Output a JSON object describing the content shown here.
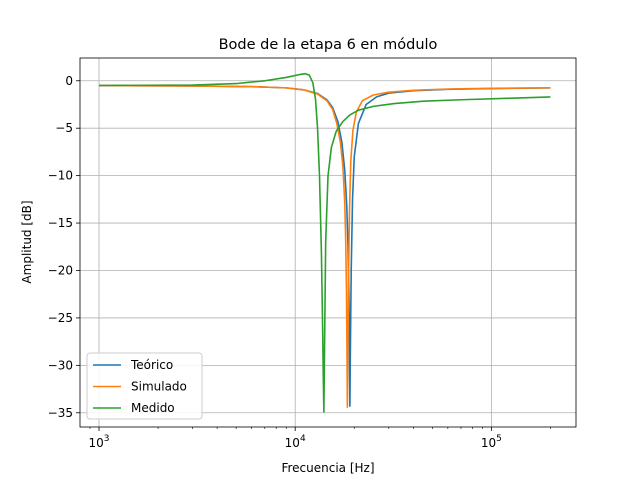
{
  "chart_data": {
    "type": "line",
    "title": "Bode de la etapa 6 en módulo",
    "xlabel": "Frecuencia [Hz]",
    "ylabel": "Amplitud [dB]",
    "xscale": "log",
    "xlim": [
      800,
      270000
    ],
    "ylim": [
      -36.5,
      2.4
    ],
    "xticks": [
      {
        "value": 1000,
        "base": "10",
        "exp": "3"
      },
      {
        "value": 10000,
        "base": "10",
        "exp": "4"
      },
      {
        "value": 100000,
        "base": "10",
        "exp": "5"
      }
    ],
    "yticks": [
      {
        "value": 0,
        "label": "0"
      },
      {
        "value": -5,
        "label": "−5"
      },
      {
        "value": -10,
        "label": "−10"
      },
      {
        "value": -15,
        "label": "−15"
      },
      {
        "value": -20,
        "label": "−20"
      },
      {
        "value": -25,
        "label": "−25"
      },
      {
        "value": -30,
        "label": "−30"
      },
      {
        "value": -35,
        "label": "−35"
      }
    ],
    "grid": true,
    "legend_position": "lower-left",
    "series": [
      {
        "name": "Teórico",
        "color": "#1f77b4",
        "x": [
          1000,
          3000,
          6000,
          9000,
          11000,
          13000,
          14500,
          15500,
          16500,
          17300,
          17900,
          18300,
          18600,
          18800,
          18900,
          18950,
          19000,
          19100,
          19300,
          19600,
          20000,
          21000,
          23000,
          26000,
          30000,
          40000,
          60000,
          100000,
          150000,
          200000
        ],
        "y": [
          -0.5,
          -0.55,
          -0.62,
          -0.75,
          -0.95,
          -1.35,
          -2.0,
          -2.8,
          -4.3,
          -6.5,
          -9.5,
          -13.0,
          -17.5,
          -23.0,
          -28.0,
          -31.5,
          -34.3,
          -29.0,
          -20.0,
          -12.5,
          -8.0,
          -4.5,
          -2.5,
          -1.7,
          -1.3,
          -1.05,
          -0.9,
          -0.82,
          -0.78,
          -0.75
        ]
      },
      {
        "name": "Simulado",
        "color": "#ff7f0e",
        "x": [
          1000,
          3000,
          6000,
          9000,
          11000,
          13000,
          14500,
          15500,
          16300,
          17000,
          17500,
          17900,
          18100,
          18250,
          18350,
          18450,
          18550,
          18700,
          18900,
          19200,
          19700,
          20500,
          22000,
          25000,
          30000,
          40000,
          60000,
          100000,
          150000,
          200000
        ],
        "y": [
          -0.5,
          -0.55,
          -0.62,
          -0.75,
          -0.95,
          -1.4,
          -2.1,
          -3.0,
          -4.5,
          -6.5,
          -9.0,
          -13.0,
          -17.0,
          -22.0,
          -27.5,
          -34.4,
          -29.0,
          -21.0,
          -14.0,
          -8.5,
          -5.2,
          -3.3,
          -2.1,
          -1.5,
          -1.2,
          -1.0,
          -0.88,
          -0.8,
          -0.77,
          -0.75
        ]
      },
      {
        "name": "Medido",
        "color": "#2ca02c",
        "x": [
          1000,
          3000,
          5000,
          7000,
          9000,
          10500,
          11200,
          11800,
          12300,
          12700,
          13000,
          13300,
          13600,
          13800,
          13900,
          14000,
          14100,
          14300,
          14700,
          15300,
          16200,
          17500,
          19000,
          21000,
          25000,
          32000,
          45000,
          70000,
          120000,
          200000
        ],
        "y": [
          -0.5,
          -0.45,
          -0.3,
          0.0,
          0.35,
          0.65,
          0.75,
          0.6,
          -0.2,
          -2.0,
          -5.0,
          -10.0,
          -18.0,
          -26.0,
          -31.0,
          -34.9,
          -29.0,
          -17.0,
          -10.0,
          -7.0,
          -5.3,
          -4.3,
          -3.6,
          -3.1,
          -2.7,
          -2.4,
          -2.15,
          -2.0,
          -1.85,
          -1.7
        ]
      }
    ]
  }
}
